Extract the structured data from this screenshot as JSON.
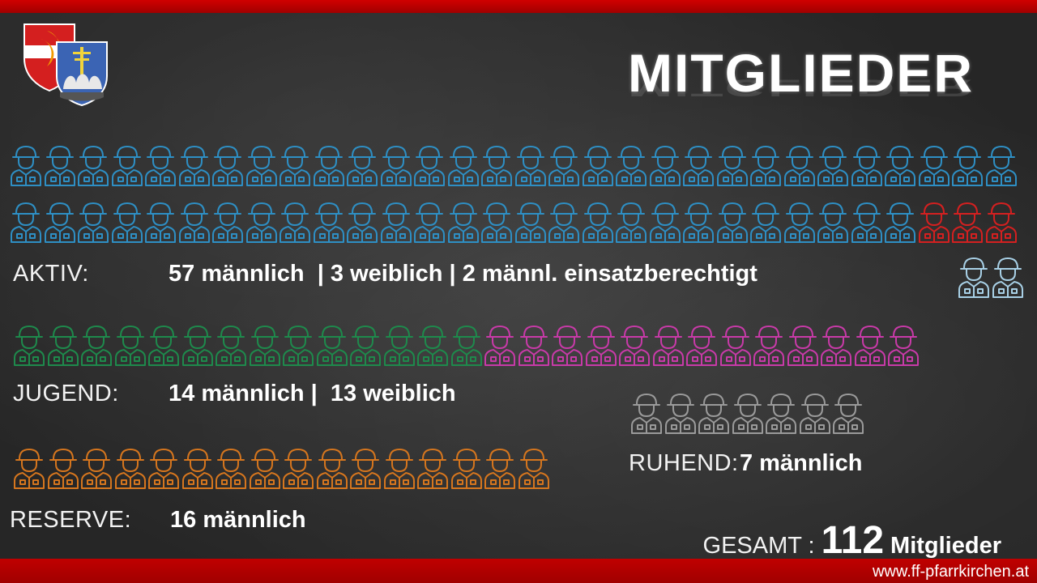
{
  "title": "MITGLIEDER",
  "website": "www.ff-pfarrkirchen.at",
  "colors": {
    "aktiv_male": "#2e8fc4",
    "aktiv_female": "#d42020",
    "einsatz": "#a8d0e6",
    "jugend_male": "#1e8a4c",
    "jugend_female": "#c83aa8",
    "reserve": "#d6761e",
    "ruhend": "#9a9a9a"
  },
  "groups": {
    "aktiv": {
      "label": "AKTIV:",
      "text": "57 männlich  | 3 weiblich | 2 männl. einsatzberechtigt",
      "male": 57,
      "female": 3,
      "einsatz": 2
    },
    "jugend": {
      "label": "JUGEND:",
      "text": "14 männlich |  13 weiblich",
      "male": 14,
      "female": 13
    },
    "reserve": {
      "label": "RESERVE:",
      "text": "16 männlich",
      "male": 16
    },
    "ruhend": {
      "label": "RUHEND:",
      "text": "7 männlich",
      "male": 7
    }
  },
  "gesamt": {
    "label": "GESAMT :",
    "number": "112",
    "unit": "Mitglieder"
  }
}
